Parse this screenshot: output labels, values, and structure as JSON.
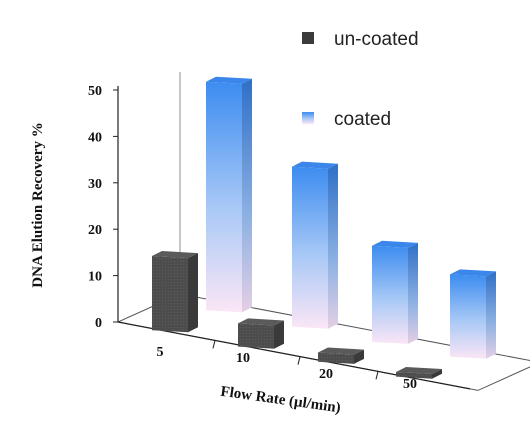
{
  "chart_data": {
    "type": "bar",
    "style": "3d-clustered",
    "categories": [
      "5",
      "10",
      "20",
      "50"
    ],
    "series": [
      {
        "name": "un-coated",
        "values": [
          16,
          5,
          2,
          1
        ],
        "color": "#4a4a4a"
      },
      {
        "name": "coated",
        "values": [
          50,
          35,
          21,
          18
        ],
        "color": "#3a8ef0"
      }
    ],
    "xlabel": "Flow Rate (µl/min)",
    "ylabel": "DNA Elution Recovery %",
    "ylim": [
      0,
      50
    ],
    "yticks": [
      "0",
      "10",
      "20",
      "30",
      "40",
      "50"
    ],
    "grid": false,
    "legend_position": "top-right"
  }
}
